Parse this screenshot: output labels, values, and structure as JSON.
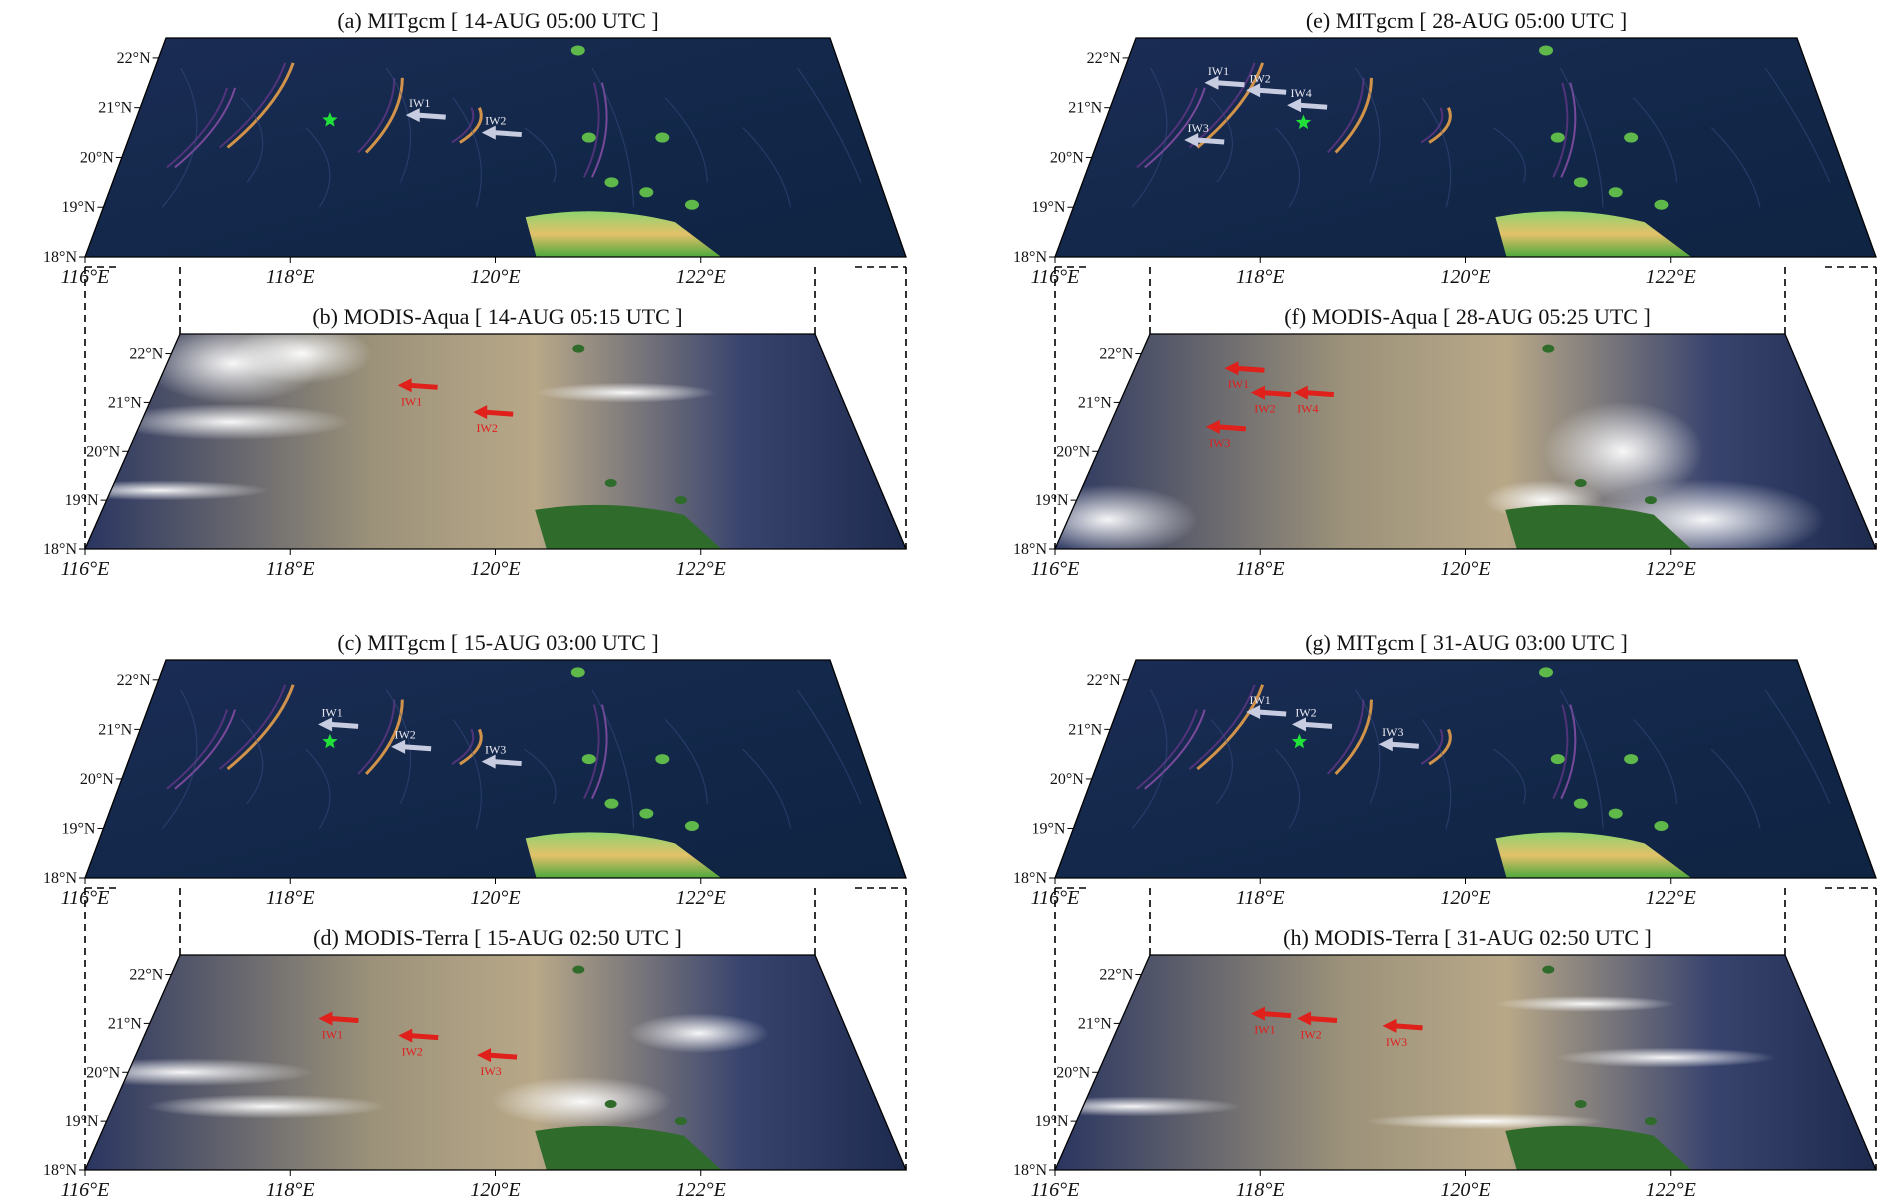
{
  "colors": {
    "model_background": "#13284a",
    "wave_highlight": "#f2a64a",
    "land_green": "#5fb84a",
    "land_low": "#1f7a24",
    "marker_green": "#22e03a",
    "arrow_model": "#c8cce0",
    "arrow_satellite": "#e0201a",
    "sat_haze": "#b8a888",
    "sat_dark": "#1d2a4e",
    "cloud": "#f4f4f6"
  },
  "axes": {
    "lat_ticks": [
      "22°N",
      "21°N",
      "20°N",
      "19°N",
      "18°N"
    ],
    "lon_ticks": [
      "116°E",
      "118°E",
      "120°E",
      "122°E"
    ]
  },
  "panels": [
    {
      "id": "a",
      "kind": "model",
      "title": "(a) MITgcm [ 14-AUG 05:00 UTC ]",
      "star": {
        "lon": 118.15,
        "lat": 20.75
      },
      "arrows": [
        {
          "label": "IW1",
          "lon": 119.05,
          "lat": 20.85
        },
        {
          "label": "IW2",
          "lon": 119.9,
          "lat": 20.5
        }
      ]
    },
    {
      "id": "b",
      "kind": "satellite",
      "title": "(b) MODIS-Aqua [ 14-AUG 05:15 UTC ]",
      "arrows": [
        {
          "label": "IW1",
          "lon": 118.9,
          "lat": 21.35
        },
        {
          "label": "IW2",
          "lon": 119.8,
          "lat": 20.8
        }
      ]
    },
    {
      "id": "c",
      "kind": "model",
      "title": "(c) MITgcm [ 15-AUG 03:00 UTC ]",
      "star": {
        "lon": 118.15,
        "lat": 20.75
      },
      "arrows": [
        {
          "label": "IW1",
          "lon": 118.05,
          "lat": 21.1
        },
        {
          "label": "IW2",
          "lon": 118.9,
          "lat": 20.65
        },
        {
          "label": "IW3",
          "lon": 119.9,
          "lat": 20.35
        }
      ]
    },
    {
      "id": "d",
      "kind": "satellite",
      "title": "(d) MODIS-Terra [ 15-AUG 02:50 UTC ]",
      "arrows": [
        {
          "label": "IW1",
          "lon": 118.0,
          "lat": 21.1
        },
        {
          "label": "IW2",
          "lon": 118.95,
          "lat": 20.75
        },
        {
          "label": "IW3",
          "lon": 119.85,
          "lat": 20.35
        }
      ]
    },
    {
      "id": "e",
      "kind": "model",
      "title": "(e) MITgcm [ 28-AUG 05:00 UTC ]",
      "star": {
        "lon": 118.2,
        "lat": 20.7
      },
      "arrows": [
        {
          "label": "IW1",
          "lon": 117.05,
          "lat": 21.5
        },
        {
          "label": "IW2",
          "lon": 117.55,
          "lat": 21.35
        },
        {
          "label": "IW3",
          "lon": 117.0,
          "lat": 20.35
        },
        {
          "label": "IW4",
          "lon": 118.05,
          "lat": 21.05
        }
      ]
    },
    {
      "id": "f",
      "kind": "satellite",
      "title": "(f) MODIS-Aqua [ 28-AUG 05:25 UTC ]",
      "arrows": [
        {
          "label": "IW1",
          "lon": 117.15,
          "lat": 21.7
        },
        {
          "label": "IW2",
          "lon": 117.55,
          "lat": 21.2
        },
        {
          "label": "IW3",
          "lon": 117.15,
          "lat": 20.5
        },
        {
          "label": "IW4",
          "lon": 118.05,
          "lat": 21.2
        }
      ]
    },
    {
      "id": "g",
      "kind": "model",
      "title": "(g) MITgcm [ 31-AUG 03:00 UTC ]",
      "star": {
        "lon": 118.15,
        "lat": 20.75
      },
      "arrows": [
        {
          "label": "IW1",
          "lon": 117.55,
          "lat": 21.35
        },
        {
          "label": "IW2",
          "lon": 118.1,
          "lat": 21.1
        },
        {
          "label": "IW3",
          "lon": 119.1,
          "lat": 20.7
        }
      ]
    },
    {
      "id": "h",
      "kind": "satellite",
      "title": "(h) MODIS-Terra [ 31-AUG 02:50 UTC ]",
      "arrows": [
        {
          "label": "IW1",
          "lon": 117.55,
          "lat": 21.2
        },
        {
          "label": "IW2",
          "lon": 118.1,
          "lat": 21.1
        },
        {
          "label": "IW3",
          "lon": 119.1,
          "lat": 20.95
        }
      ]
    }
  ]
}
